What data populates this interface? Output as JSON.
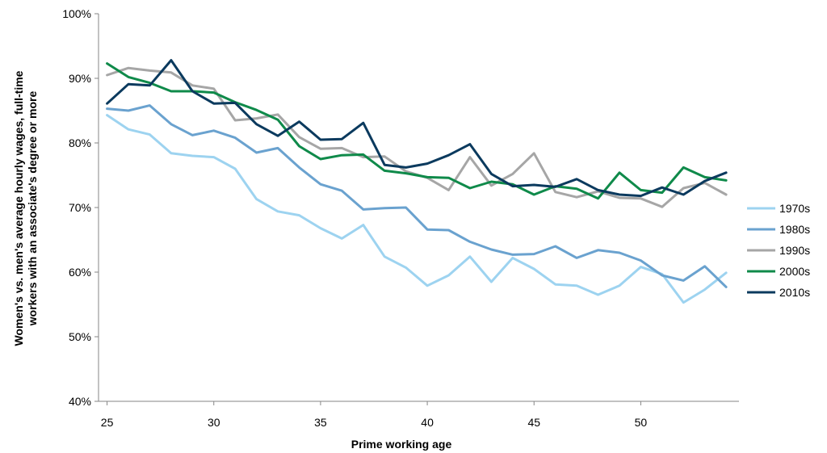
{
  "chart_data": {
    "type": "line",
    "xlabel": "Prime working age",
    "ylabel_lines": [
      "Women's vs. men's average hourly wages, full-time",
      "workers with an associate's degree or more"
    ],
    "ylim": [
      0.4,
      1.0
    ],
    "xlim": [
      24.6,
      54.6
    ],
    "y_ticks": [
      {
        "value": 0.4,
        "label": "40%"
      },
      {
        "value": 0.5,
        "label": "50%"
      },
      {
        "value": 0.6,
        "label": "60%"
      },
      {
        "value": 0.7,
        "label": "70%"
      },
      {
        "value": 0.8,
        "label": "80%"
      },
      {
        "value": 0.9,
        "label": "90%"
      },
      {
        "value": 1.0,
        "label": "100%"
      }
    ],
    "x_ticks": [
      {
        "value": 25,
        "label": "25"
      },
      {
        "value": 30,
        "label": "30"
      },
      {
        "value": 35,
        "label": "35"
      },
      {
        "value": 40,
        "label": "40"
      },
      {
        "value": 45,
        "label": "45"
      },
      {
        "value": 50,
        "label": "50"
      }
    ],
    "grid": false,
    "legend_position": "right",
    "x": [
      25,
      26,
      27,
      28,
      29,
      30,
      31,
      32,
      33,
      34,
      35,
      36,
      37,
      38,
      39,
      40,
      41,
      42,
      43,
      44,
      45,
      46,
      47,
      48,
      49,
      50,
      51,
      52,
      53,
      54
    ],
    "series": [
      {
        "name": "1970s",
        "color": "#9dd3f0",
        "values": [
          0.843,
          0.821,
          0.813,
          0.784,
          0.78,
          0.778,
          0.76,
          0.713,
          0.694,
          0.688,
          0.668,
          0.652,
          0.673,
          0.624,
          0.607,
          0.579,
          0.595,
          0.624,
          0.585,
          0.622,
          0.605,
          0.581,
          0.579,
          0.565,
          0.579,
          0.608,
          0.597,
          0.553,
          0.573,
          0.599
        ]
      },
      {
        "name": "1980s",
        "color": "#6aa2cf",
        "values": [
          0.853,
          0.85,
          0.858,
          0.829,
          0.812,
          0.819,
          0.808,
          0.785,
          0.792,
          0.762,
          0.736,
          0.726,
          0.697,
          0.699,
          0.7,
          0.666,
          0.665,
          0.647,
          0.635,
          0.627,
          0.628,
          0.64,
          0.622,
          0.634,
          0.63,
          0.618,
          0.595,
          0.587,
          0.609,
          0.577
        ]
      },
      {
        "name": "1990s",
        "color": "#a6a6a6",
        "values": [
          0.905,
          0.916,
          0.912,
          0.909,
          0.889,
          0.884,
          0.835,
          0.838,
          0.844,
          0.809,
          0.791,
          0.792,
          0.778,
          0.779,
          0.756,
          0.746,
          0.727,
          0.778,
          0.734,
          0.752,
          0.784,
          0.724,
          0.716,
          0.725,
          0.715,
          0.714,
          0.701,
          0.73,
          0.738,
          0.72
        ]
      },
      {
        "name": "2000s",
        "color": "#0f8a4a",
        "values": [
          0.923,
          0.902,
          0.893,
          0.88,
          0.88,
          0.878,
          0.863,
          0.851,
          0.836,
          0.795,
          0.775,
          0.781,
          0.782,
          0.757,
          0.753,
          0.747,
          0.746,
          0.73,
          0.74,
          0.736,
          0.72,
          0.733,
          0.729,
          0.714,
          0.754,
          0.727,
          0.723,
          0.762,
          0.747,
          0.742
        ]
      },
      {
        "name": "2010s",
        "color": "#0b3a5e",
        "values": [
          0.861,
          0.891,
          0.889,
          0.928,
          0.88,
          0.861,
          0.862,
          0.829,
          0.811,
          0.833,
          0.805,
          0.806,
          0.831,
          0.766,
          0.762,
          0.768,
          0.781,
          0.798,
          0.752,
          0.733,
          0.735,
          0.732,
          0.744,
          0.727,
          0.72,
          0.718,
          0.731,
          0.72,
          0.741,
          0.754
        ]
      }
    ]
  }
}
